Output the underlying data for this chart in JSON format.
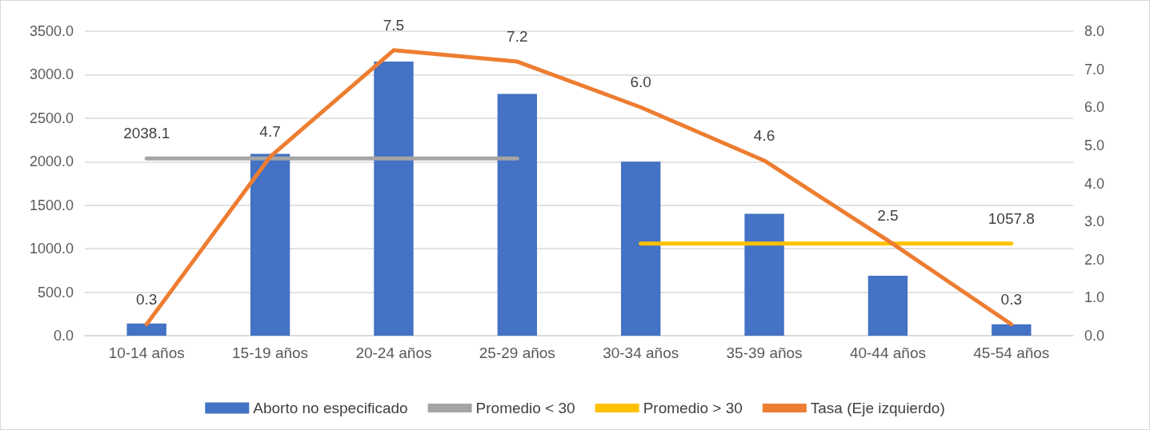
{
  "chart_data": {
    "type": "bar",
    "categories": [
      "10-14 años",
      "15-19 años",
      "20-24 años",
      "25-29 años",
      "30-34 años",
      "35-39 años",
      "40-44 años",
      "45-54 años"
    ],
    "series": [
      {
        "name": "Aborto no especificado",
        "color": "#4472c4",
        "values": [
          140,
          2090,
          3150,
          2780,
          2000,
          1400,
          690,
          130
        ]
      },
      {
        "name": "Promedio < 30",
        "type": "line",
        "color": "#a5a5a5",
        "values": [
          2038.1,
          2038.1,
          2038.1,
          2038.1,
          null,
          null,
          null,
          null
        ],
        "value_labels": [
          "2038.1",
          null,
          null,
          null,
          null,
          null,
          null,
          null
        ]
      },
      {
        "name": "Promedio > 30",
        "type": "line",
        "color": "#ffc000",
        "values": [
          null,
          null,
          null,
          null,
          1057.8,
          1057.8,
          1057.8,
          1057.8
        ],
        "value_labels": [
          null,
          null,
          null,
          null,
          null,
          null,
          null,
          "1057.8"
        ]
      },
      {
        "name": "Tasa (Eje izquierdo)",
        "type": "line",
        "axis": "y2",
        "color": "#ed7d31",
        "values": [
          0.3,
          4.7,
          7.5,
          7.2,
          6.0,
          4.6,
          2.5,
          0.3
        ],
        "value_labels": [
          "0.3",
          "4.7",
          "7.5",
          "7.2",
          "6.0",
          "4.6",
          "2.5",
          "0.3"
        ]
      }
    ],
    "ylim": [
      0,
      3500
    ],
    "yticks": [
      {
        "value": 0,
        "label": "0.0"
      },
      {
        "value": 500,
        "label": "500.0"
      },
      {
        "value": 1000,
        "label": "1000.0"
      },
      {
        "value": 1500,
        "label": "1500.0"
      },
      {
        "value": 2000,
        "label": "2000.0"
      },
      {
        "value": 2500,
        "label": "2500.0"
      },
      {
        "value": 3000,
        "label": "3000.0"
      },
      {
        "value": 3500,
        "label": "3500.0"
      }
    ],
    "y2lim": [
      0,
      8
    ],
    "y2ticks": [
      {
        "value": 0,
        "label": "0.0"
      },
      {
        "value": 1,
        "label": "1.0"
      },
      {
        "value": 2,
        "label": "2.0"
      },
      {
        "value": 3,
        "label": "3.0"
      },
      {
        "value": 4,
        "label": "4.0"
      },
      {
        "value": 5,
        "label": "5.0"
      },
      {
        "value": 6,
        "label": "6.0"
      },
      {
        "value": 7,
        "label": "7.0"
      },
      {
        "value": 8,
        "label": "8.0"
      }
    ],
    "grid": "y",
    "legend": "bottom",
    "marker": "none"
  }
}
